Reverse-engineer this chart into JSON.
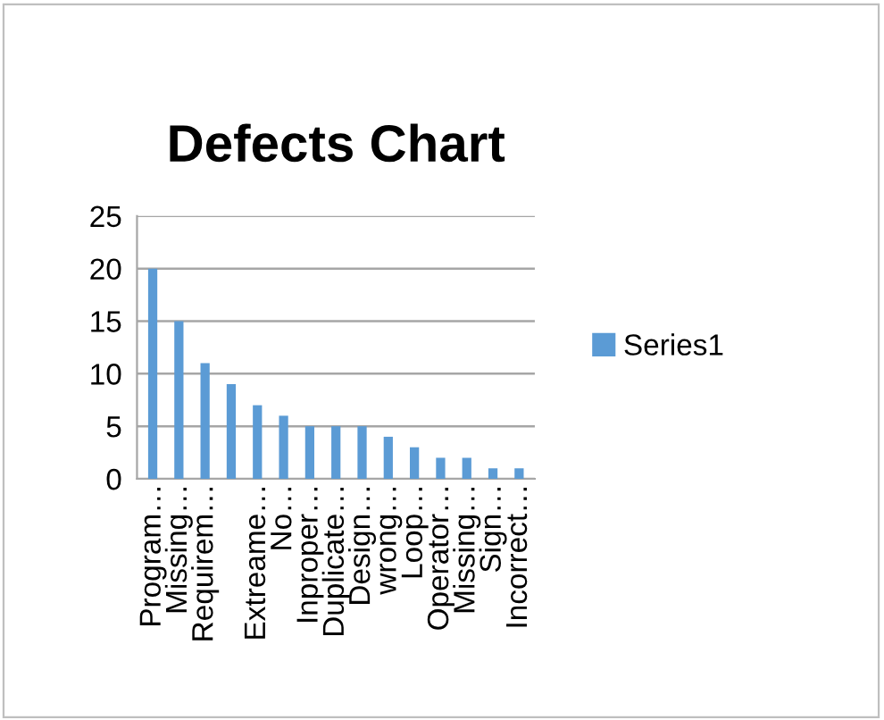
{
  "chart_data": {
    "type": "bar",
    "title": "Defects Chart",
    "categories": [
      "Program…",
      "Missing…",
      "Requirem…",
      null,
      "Extreame…",
      "No…",
      "Inproper…",
      "Duplicate…",
      "Design…",
      "wrong…",
      "Loop…",
      "Operator…",
      "Missing…",
      "Sign…",
      "Incorrect…"
    ],
    "series": [
      {
        "name": "Series1",
        "color": "#5b9bd5",
        "values": [
          20,
          15,
          11,
          9,
          7,
          6,
          5,
          5,
          5,
          4,
          3,
          2,
          2,
          1,
          1
        ]
      }
    ],
    "ylim": [
      0,
      25
    ],
    "yticks": [
      0,
      5,
      10,
      15,
      20,
      25
    ],
    "grid": "y",
    "legend": "right"
  }
}
